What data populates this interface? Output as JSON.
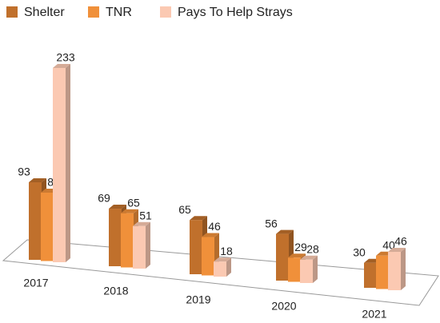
{
  "chart_data": {
    "type": "bar",
    "categories": [
      "2017",
      "2018",
      "2019",
      "2020",
      "2021"
    ],
    "series": [
      {
        "name": "Shelter",
        "color": "#c0702c",
        "values": [
          93,
          69,
          65,
          56,
          30
        ]
      },
      {
        "name": "TNR",
        "color": "#f0903a",
        "values": [
          82,
          65,
          46,
          29,
          40
        ]
      },
      {
        "name": "Pays To Help Strays",
        "color": "#fbc9b2",
        "values": [
          233,
          51,
          18,
          28,
          46
        ]
      }
    ],
    "legend": "top"
  }
}
